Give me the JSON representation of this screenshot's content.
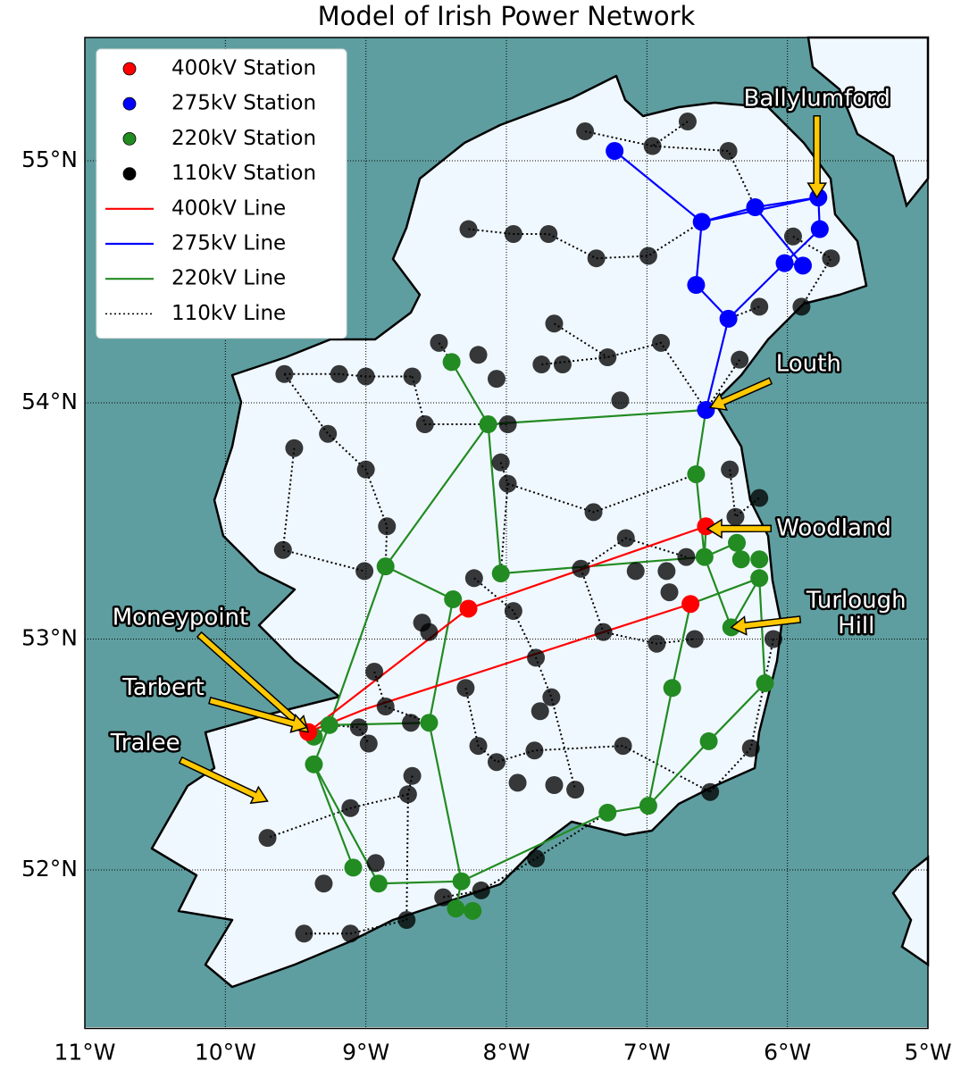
{
  "chart_data": {
    "type": "map",
    "title": "Model of Irish Power Network",
    "projection": "mercator",
    "xlim": [
      -11,
      -5
    ],
    "ylim": [
      51.3,
      55.5
    ],
    "xticks": [
      {
        "value": -11,
        "label": "11°W"
      },
      {
        "value": -10,
        "label": "10°W"
      },
      {
        "value": -9,
        "label": "9°W"
      },
      {
        "value": -8,
        "label": "8°W"
      },
      {
        "value": -7,
        "label": "7°W"
      },
      {
        "value": -6,
        "label": "6°W"
      },
      {
        "value": -5,
        "label": "5°W"
      }
    ],
    "yticks": [
      {
        "value": 52,
        "label": "52°N"
      },
      {
        "value": 53,
        "label": "53°N"
      },
      {
        "value": 54,
        "label": "54°N"
      },
      {
        "value": 55,
        "label": "55°N"
      }
    ],
    "grid": true,
    "legend": "upper left",
    "series": [
      {
        "name": "400kV Station",
        "color": "#ff0000",
        "x": [
          -9.41,
          -8.27,
          -6.69,
          -6.58
        ],
        "y": [
          52.6,
          53.13,
          53.15,
          53.48
        ]
      },
      {
        "name": "275kV Station",
        "color": "#0000ff",
        "x": [
          -7.23,
          -6.61,
          -6.23,
          -5.78,
          -5.77,
          -6.02,
          -5.89,
          -6.65,
          -6.42,
          -6.58
        ],
        "y": [
          55.04,
          54.75,
          54.81,
          54.85,
          54.72,
          54.58,
          54.57,
          54.49,
          54.35,
          53.97
        ]
      },
      {
        "name": "220kV Station",
        "color": "#228b22",
        "x": [
          -8.39,
          -8.13,
          -6.65,
          -6.59,
          -6.36,
          -6.33,
          -6.2,
          -6.2,
          -6.4,
          -6.16,
          -6.82,
          -6.56,
          -6.99,
          -7.28,
          -8.86,
          -8.38,
          -8.04,
          -8.55,
          -9.26,
          -9.37,
          -9.37,
          -9.09,
          -8.91,
          -8.32,
          -8.36,
          -8.24
        ],
        "y": [
          54.17,
          53.91,
          53.7,
          53.35,
          53.41,
          53.34,
          53.34,
          53.26,
          53.05,
          52.81,
          52.79,
          52.56,
          52.28,
          52.25,
          53.31,
          53.17,
          53.28,
          52.64,
          52.63,
          52.58,
          52.46,
          52.01,
          51.94,
          51.95,
          51.83,
          51.82
        ]
      },
      {
        "name": "110kV Station",
        "color": "#000000",
        "x": [
          -9.58,
          -9.19,
          -9.0,
          -8.67,
          -8.48,
          -8.2,
          -8.07,
          -7.75,
          -7.6,
          -7.19,
          -6.9,
          -6.34,
          -8.58,
          -7.99,
          -9.27,
          -9.51,
          -9.0,
          -8.04,
          -7.99,
          -8.85,
          -9.59,
          -9.01,
          -8.23,
          -7.95,
          -8.6,
          -8.55,
          -7.38,
          -7.15,
          -7.47,
          -7.08,
          -6.86,
          -6.72,
          -6.84,
          -6.66,
          -6.93,
          -7.31,
          -7.79,
          -7.68,
          -7.76,
          -8.29,
          -8.94,
          -8.86,
          -9.05,
          -8.68,
          -8.98,
          -8.2,
          -8.07,
          -7.8,
          -7.66,
          -7.51,
          -7.92,
          -7.17,
          -6.55,
          -6.26,
          -6.1,
          -8.67,
          -8.7,
          -9.7,
          -9.11,
          -8.93,
          -9.3,
          -9.44,
          -9.11,
          -8.71,
          -8.45,
          -8.18,
          -7.79,
          -6.37,
          -6.41,
          -6.2,
          -7.44,
          -6.96,
          -6.42,
          -6.71,
          -7.95,
          -7.7,
          -6.99,
          -7.36,
          -8.27,
          -7.66,
          -7.28,
          -5.96,
          -5.69,
          -5.9,
          -6.2
        ],
        "y": [
          54.12,
          54.12,
          54.11,
          54.11,
          54.25,
          54.2,
          54.1,
          54.16,
          54.16,
          54.01,
          54.25,
          54.18,
          53.91,
          53.91,
          53.87,
          53.81,
          53.72,
          53.75,
          53.66,
          53.48,
          53.38,
          53.29,
          53.26,
          53.12,
          53.07,
          53.03,
          53.54,
          53.43,
          53.3,
          53.29,
          53.29,
          53.35,
          53.2,
          53.0,
          52.98,
          53.03,
          52.92,
          52.75,
          52.69,
          52.79,
          52.86,
          52.71,
          52.62,
          52.64,
          52.55,
          52.54,
          52.47,
          52.52,
          52.37,
          52.35,
          52.38,
          52.54,
          52.34,
          52.53,
          53.0,
          52.41,
          52.33,
          52.14,
          52.27,
          52.03,
          51.94,
          51.72,
          51.72,
          51.78,
          51.88,
          51.91,
          52.05,
          53.52,
          53.72,
          53.6,
          55.12,
          55.06,
          55.04,
          55.16,
          54.7,
          54.7,
          54.61,
          54.6,
          54.72,
          54.33,
          54.19,
          54.69,
          54.6,
          54.4,
          54.4
        ]
      }
    ],
    "lines": [
      {
        "name": "400kV Line",
        "color": "#ff0000",
        "style": "solid",
        "segments": [
          {
            "x": [
              -9.41,
              -8.27,
              -6.58
            ],
            "y": [
              52.6,
              53.13,
              53.48
            ]
          },
          {
            "x": [
              -9.41,
              -9.0,
              -6.69
            ],
            "y": [
              52.6,
              52.7,
              53.15
            ]
          }
        ]
      },
      {
        "name": "275kV Line",
        "color": "#0000ff",
        "style": "solid",
        "segments": [
          {
            "x": [
              -7.23,
              -6.61,
              -6.23,
              -5.78,
              -5.77,
              -6.02,
              -6.42,
              -6.58
            ],
            "y": [
              55.04,
              54.75,
              54.81,
              54.85,
              54.72,
              54.58,
              54.35,
              53.97
            ]
          },
          {
            "x": [
              -6.61,
              -6.65,
              -6.42
            ],
            "y": [
              54.75,
              54.49,
              54.35
            ]
          },
          {
            "x": [
              -6.61,
              -5.78
            ],
            "y": [
              54.75,
              54.85
            ]
          },
          {
            "x": [
              -6.23,
              -5.89,
              -6.02
            ],
            "y": [
              54.81,
              54.57,
              54.58
            ]
          }
        ]
      },
      {
        "name": "220kV Line",
        "color": "#228b22",
        "style": "solid",
        "segments": [
          {
            "x": [
              -8.39,
              -8.13,
              -8.86,
              -9.26,
              -9.37,
              -9.09
            ],
            "y": [
              54.17,
              53.91,
              53.31,
              52.63,
              52.46,
              52.01
            ]
          },
          {
            "x": [
              -8.13,
              -6.58,
              -6.65,
              -6.59,
              -6.4,
              -6.2
            ],
            "y": [
              53.91,
              53.97,
              53.7,
              53.35,
              53.05,
              53.26
            ]
          },
          {
            "x": [
              -8.86,
              -8.38,
              -8.55,
              -8.32,
              -8.36
            ],
            "y": [
              53.31,
              53.17,
              52.64,
              51.95,
              51.83
            ]
          },
          {
            "x": [
              -8.13,
              -8.04,
              -6.59,
              -6.36
            ],
            "y": [
              53.91,
              53.28,
              53.35,
              53.41
            ]
          },
          {
            "x": [
              -9.37,
              -9.26,
              -8.55
            ],
            "y": [
              52.58,
              52.63,
              52.64
            ]
          },
          {
            "x": [
              -9.37,
              -8.91,
              -8.32,
              -7.28,
              -6.99,
              -6.82,
              -6.69
            ],
            "y": [
              52.46,
              51.94,
              51.95,
              52.25,
              52.28,
              52.79,
              53.15
            ]
          },
          {
            "x": [
              -6.99,
              -6.56,
              -6.16,
              -6.2
            ],
            "y": [
              52.28,
              52.56,
              52.81,
              53.26
            ]
          },
          {
            "x": [
              -6.58,
              -6.59
            ],
            "y": [
              53.48,
              53.35
            ]
          },
          {
            "x": [
              -6.69,
              -6.2
            ],
            "y": [
              53.15,
              53.26
            ]
          },
          {
            "x": [
              -8.36,
              -8.24
            ],
            "y": [
              51.83,
              51.82
            ]
          }
        ]
      },
      {
        "name": "110kV Line",
        "color": "#000000",
        "style": "dotted",
        "segments": [
          {
            "x": [
              -9.58,
              -9.19,
              -9.0,
              -8.67
            ],
            "y": [
              54.12,
              54.12,
              54.11,
              54.11
            ]
          },
          {
            "x": [
              -8.48,
              -8.39
            ],
            "y": [
              54.25,
              54.17
            ]
          },
          {
            "x": [
              -9.58,
              -9.27,
              -9.0,
              -8.85,
              -8.86
            ],
            "y": [
              54.12,
              53.87,
              53.72,
              53.48,
              53.31
            ]
          },
          {
            "x": [
              -9.51,
              -9.59,
              -9.01
            ],
            "y": [
              53.81,
              53.38,
              53.29
            ]
          },
          {
            "x": [
              -8.67,
              -8.58,
              -7.99
            ],
            "y": [
              54.11,
              53.91,
              53.91
            ]
          },
          {
            "x": [
              -7.75,
              -7.28,
              -6.9,
              -6.58
            ],
            "y": [
              54.16,
              54.19,
              54.25,
              53.97
            ]
          },
          {
            "x": [
              -7.99,
              -7.38,
              -6.65
            ],
            "y": [
              53.66,
              53.54,
              53.7
            ]
          },
          {
            "x": [
              -8.04,
              -7.99,
              -8.04
            ],
            "y": [
              53.75,
              53.66,
              53.28
            ]
          },
          {
            "x": [
              -8.23,
              -7.95,
              -7.79,
              -7.68,
              -7.51
            ],
            "y": [
              53.26,
              53.12,
              52.92,
              52.75,
              52.35
            ]
          },
          {
            "x": [
              -7.47,
              -7.15,
              -6.72
            ],
            "y": [
              53.3,
              53.43,
              53.35
            ]
          },
          {
            "x": [
              -7.47,
              -7.31,
              -6.93,
              -6.66
            ],
            "y": [
              53.3,
              53.03,
              52.98,
              53.0
            ]
          },
          {
            "x": [
              -8.94,
              -8.86,
              -8.55
            ],
            "y": [
              52.86,
              52.71,
              52.64
            ]
          },
          {
            "x": [
              -8.29,
              -8.2,
              -8.07,
              -7.8,
              -7.17,
              -6.55
            ],
            "y": [
              52.79,
              52.54,
              52.47,
              52.52,
              52.54,
              52.34
            ]
          },
          {
            "x": [
              -8.7,
              -9.11,
              -9.7
            ],
            "y": [
              52.33,
              52.27,
              52.14
            ]
          },
          {
            "x": [
              -8.67,
              -8.7,
              -8.71,
              -9.11,
              -9.44
            ],
            "y": [
              52.41,
              52.33,
              51.78,
              51.72,
              51.72
            ]
          },
          {
            "x": [
              -8.45,
              -8.18,
              -7.79,
              -7.28
            ],
            "y": [
              51.88,
              51.91,
              52.05,
              52.25
            ]
          },
          {
            "x": [
              -7.44,
              -6.96,
              -6.42,
              -6.23
            ],
            "y": [
              55.12,
              55.06,
              55.04,
              54.81
            ]
          },
          {
            "x": [
              -6.71,
              -6.96
            ],
            "y": [
              55.16,
              55.06
            ]
          },
          {
            "x": [
              -8.27,
              -7.95,
              -7.7,
              -7.36,
              -6.99,
              -6.61
            ],
            "y": [
              54.72,
              54.7,
              54.7,
              54.6,
              54.61,
              54.75
            ]
          },
          {
            "x": [
              -7.66,
              -7.28
            ],
            "y": [
              54.33,
              54.19
            ]
          },
          {
            "x": [
              -6.2,
              -6.42
            ],
            "y": [
              54.4,
              54.35
            ]
          },
          {
            "x": [
              -5.96,
              -5.69,
              -5.9
            ],
            "y": [
              54.69,
              54.6,
              54.4
            ]
          },
          {
            "x": [
              -6.34,
              -6.58
            ],
            "y": [
              54.18,
              53.97
            ]
          },
          {
            "x": [
              -6.41,
              -6.37,
              -6.2
            ],
            "y": [
              53.72,
              53.52,
              53.6
            ]
          },
          {
            "x": [
              -6.1,
              -6.26,
              -6.55
            ],
            "y": [
              53.0,
              52.53,
              52.34
            ]
          },
          {
            "x": [
              -9.26,
              -9.05,
              -8.98
            ],
            "y": [
              52.63,
              52.62,
              52.55
            ]
          }
        ]
      }
    ],
    "annotations": [
      {
        "text": "Ballylumford",
        "xy": [
          -5.79,
          54.85
        ],
        "xytext": [
          -5.79,
          55.25
        ]
      },
      {
        "text": "Louth",
        "xy": [
          -6.55,
          53.98
        ],
        "xytext": [
          -5.85,
          54.16
        ]
      },
      {
        "text": "Woodland",
        "xy": [
          -6.57,
          53.47
        ],
        "xytext": [
          -5.67,
          53.47
        ]
      },
      {
        "text": "Turlough\nHill",
        "xy": [
          -6.4,
          53.05
        ],
        "xytext": [
          -5.51,
          53.11
        ]
      },
      {
        "text": "Moneypoint",
        "xy": [
          -9.41,
          52.6
        ],
        "xytext": [
          -10.32,
          53.09
        ]
      },
      {
        "text": "Tarbert",
        "xy": [
          -9.42,
          52.62
        ],
        "xytext": [
          -10.44,
          52.79
        ]
      },
      {
        "text": "Tralee",
        "xy": [
          -9.7,
          52.3
        ],
        "xytext": [
          -10.57,
          52.55
        ]
      }
    ]
  }
}
